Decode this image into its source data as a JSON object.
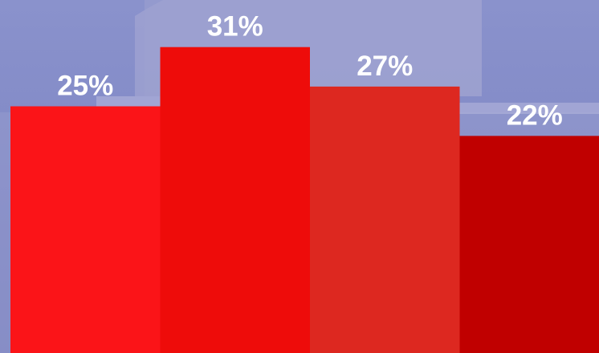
{
  "chart_data": {
    "type": "bar",
    "categories": [
      null,
      null,
      null,
      null
    ],
    "values": [
      25,
      31,
      27,
      22
    ],
    "value_labels": [
      "25%",
      "31%",
      "27%",
      "22%"
    ],
    "colors": [
      "#fb1418",
      "#ee0c0a",
      "#dd2820",
      "#c00000"
    ]
  }
}
